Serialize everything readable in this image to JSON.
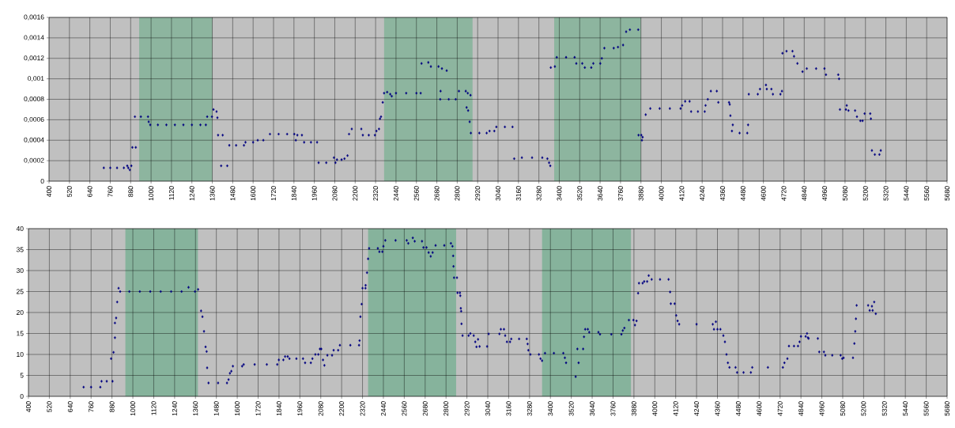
{
  "chart_data": [
    {
      "type": "scatter",
      "color": "#000080",
      "marker": "diamond",
      "grid": true,
      "xlim": [
        400,
        5680
      ],
      "xticks": [
        400,
        520,
        640,
        760,
        880,
        1000,
        1120,
        1240,
        1360,
        1480,
        1600,
        1720,
        1840,
        1960,
        2080,
        2200,
        2320,
        2440,
        2560,
        2680,
        2800,
        2920,
        3040,
        3160,
        3280,
        3400,
        3520,
        3640,
        3760,
        3880,
        4000,
        4120,
        4240,
        4360,
        4480,
        4600,
        4720,
        4840,
        4960,
        5080,
        5200,
        5320,
        5440,
        5560,
        5680
      ],
      "ylim": [
        0,
        0.0016
      ],
      "yticks": [
        0,
        {
          "value": 0.0002,
          "label": "0,0002"
        },
        {
          "value": 0.0004,
          "label": "0,0004"
        },
        {
          "value": 0.0006,
          "label": "0,0006"
        },
        {
          "value": 0.0008,
          "label": "0,0008"
        },
        {
          "value": 0.001,
          "label": "0,001"
        },
        {
          "value": 0.0012,
          "label": "0,0012"
        },
        {
          "value": 0.0014,
          "label": "0,0014"
        },
        {
          "value": 0.0016,
          "label": "0,0016"
        }
      ],
      "bands": [
        {
          "axis": "x",
          "from": 930,
          "to": 1360,
          "color": "#8db59f"
        },
        {
          "axis": "x",
          "from": 2370,
          "to": 2890,
          "color": "#8db59f"
        },
        {
          "axis": "x",
          "from": 3370,
          "to": 3880,
          "color": "#8db59f"
        }
      ],
      "x": [
        722,
        760,
        800,
        840,
        866,
        860,
        875,
        884,
        890,
        910,
        905,
        940,
        982,
        986,
        995,
        1040,
        1090,
        1140,
        1190,
        1240,
        1290,
        1322,
        1330,
        1358,
        1367,
        1385,
        1390,
        1394,
        1421,
        1412,
        1448,
        1460,
        1500,
        1546,
        1555,
        1600,
        1627,
        1660,
        1699,
        1750,
        1800,
        1842,
        1851,
        1860,
        1887,
        1900,
        1940,
        1976,
        1985,
        2030,
        2084,
        2075,
        2093,
        2120,
        2137,
        2155,
        2164,
        2180,
        2236,
        2245,
        2280,
        2316,
        2325,
        2340,
        2346,
        2352,
        2362,
        2370,
        2388,
        2406,
        2415,
        2440,
        2500,
        2560,
        2585,
        2590,
        2630,
        2645,
        2690,
        2710,
        2738,
        2702,
        2700,
        2750,
        2791,
        2810,
        2850,
        2862,
        2878,
        2855,
        2864,
        2873,
        2880,
        2930,
        2973,
        2990,
        3018,
        3030,
        3080,
        3125,
        3135,
        3180,
        3240,
        3300,
        3330,
        3340,
        3347,
        3350,
        3374,
        3385,
        3440,
        3490,
        3500,
        3535,
        3550,
        3588,
        3600,
        3641,
        3650,
        3665,
        3720,
        3745,
        3775,
        3793,
        3815,
        3864,
        3866,
        3882,
        3886,
        3890,
        3908,
        3935,
        3990,
        4050,
        4113,
        4122,
        4140,
        4166,
        4175,
        4215,
        4255,
        4260,
        4273,
        4291,
        4326,
        4335,
        4398,
        4402,
        4406,
        4415,
        4420,
        4460,
        4505,
        4510,
        4514,
        4567,
        4580,
        4620,
        4647,
        4615,
        4656,
        4700,
        4709,
        4712,
        4736,
        4771,
        4780,
        4800,
        4830,
        4855,
        4910,
        4959,
        4968,
        5040,
        5045,
        5050,
        5085,
        5090,
        5100,
        5139,
        5150,
        5170,
        5183,
        5195,
        5228,
        5232,
        5238,
        5255,
        5282,
        5290
      ],
      "values": [
        0.00013,
        0.00013,
        0.00013,
        0.00013,
        0.00013,
        0.00015,
        0.00011,
        0.00015,
        0.00033,
        0.00033,
        0.00063,
        0.00063,
        0.00063,
        0.00058,
        0.00055,
        0.00055,
        0.00055,
        0.00055,
        0.00055,
        0.00055,
        0.00055,
        0.00055,
        0.00063,
        0.00063,
        0.0007,
        0.00068,
        0.00062,
        0.00045,
        0.00045,
        0.00015,
        0.00015,
        0.00035,
        0.00035,
        0.00035,
        0.00038,
        0.00038,
        0.0004,
        0.0004,
        0.00046,
        0.00046,
        0.00046,
        0.00046,
        0.0004,
        0.00045,
        0.00045,
        0.00038,
        0.00038,
        0.00038,
        0.00018,
        0.00018,
        0.00018,
        0.00023,
        0.00021,
        0.00021,
        0.00022,
        0.00025,
        0.00046,
        0.00051,
        0.00051,
        0.00045,
        0.00045,
        0.00045,
        0.00049,
        0.00051,
        0.00061,
        0.00063,
        0.00077,
        0.00086,
        0.00087,
        0.00085,
        0.00083,
        0.00086,
        0.00086,
        0.00086,
        0.00086,
        0.00115,
        0.00116,
        0.00112,
        0.00112,
        0.0011,
        0.00108,
        0.00088,
        0.0008,
        0.0008,
        0.0008,
        0.00088,
        0.00088,
        0.00086,
        0.00084,
        0.00072,
        0.00069,
        0.00058,
        0.00047,
        0.00047,
        0.00047,
        0.00049,
        0.00049,
        0.00053,
        0.00053,
        0.00053,
        0.00022,
        0.00023,
        0.00023,
        0.00023,
        0.00022,
        0.00018,
        0.00015,
        0.00111,
        0.00112,
        0.00121,
        0.00121,
        0.00121,
        0.00115,
        0.00115,
        0.00111,
        0.00111,
        0.00115,
        0.00115,
        0.0012,
        0.0013,
        0.0013,
        0.00131,
        0.00133,
        0.00146,
        0.00148,
        0.00148,
        0.00045,
        0.00045,
        0.0004,
        0.00043,
        0.00065,
        0.00071,
        0.00071,
        0.00071,
        0.00071,
        0.00074,
        0.00078,
        0.00078,
        0.00068,
        0.00068,
        0.00068,
        0.00074,
        0.0008,
        0.00088,
        0.00088,
        0.00077,
        0.00077,
        0.00075,
        0.00064,
        0.00049,
        0.00055,
        0.00047,
        0.00047,
        0.00055,
        0.00085,
        0.00085,
        0.0009,
        0.0009,
        0.0009,
        0.00094,
        0.00085,
        0.00085,
        0.00088,
        0.00125,
        0.00127,
        0.00127,
        0.00122,
        0.00115,
        0.00107,
        0.0011,
        0.0011,
        0.0011,
        0.00104,
        0.00104,
        0.001,
        0.0007,
        0.0007,
        0.00074,
        0.00069,
        0.00069,
        0.00063,
        0.00059,
        0.00059,
        0.00066,
        0.00066,
        0.00061,
        0.0003,
        0.00026,
        0.00026,
        0.0003
      ]
    },
    {
      "type": "scatter",
      "color": "#000080",
      "marker": "diamond",
      "grid": true,
      "xlim": [
        400,
        5680
      ],
      "xticks": [
        400,
        520,
        640,
        760,
        880,
        1000,
        1120,
        1240,
        1360,
        1480,
        1600,
        1720,
        1840,
        1960,
        2080,
        2200,
        2320,
        2440,
        2560,
        2680,
        2800,
        2920,
        3040,
        3160,
        3280,
        3400,
        3520,
        3640,
        3760,
        3880,
        4000,
        4120,
        4240,
        4360,
        4480,
        4600,
        4720,
        4840,
        4960,
        5080,
        5200,
        5320,
        5440,
        5560,
        5680
      ],
      "ylim": [
        0,
        40
      ],
      "yticks": [
        0,
        5,
        10,
        15,
        20,
        25,
        30,
        35,
        40
      ],
      "bands": [
        {
          "axis": "x",
          "from": 957,
          "to": 1374,
          "color": "#86b39c"
        },
        {
          "axis": "x",
          "from": 2352,
          "to": 2858,
          "color": "#86b39c"
        },
        {
          "axis": "x",
          "from": 3352,
          "to": 3863,
          "color": "#86b39c"
        }
      ],
      "x": [
        717,
        760,
        813,
        820,
        850,
        883,
        875,
        889,
        897,
        897,
        904,
        910,
        918,
        927,
        980,
        1040,
        1100,
        1160,
        1220,
        1280,
        1320,
        1357,
        1375,
        1392,
        1400,
        1409,
        1418,
        1424,
        1427,
        1435,
        1490,
        1541,
        1550,
        1558,
        1566,
        1575,
        1628,
        1637,
        1700,
        1770,
        1830,
        1839,
        1865,
        1875,
        1890,
        1900,
        1940,
        1978,
        1990,
        2023,
        2032,
        2049,
        2066,
        2075,
        2083,
        2093,
        2101,
        2118,
        2145,
        2154,
        2180,
        2190,
        2250,
        2300,
        2303,
        2308,
        2315,
        2320,
        2337,
        2338,
        2346,
        2352,
        2358,
        2408,
        2417,
        2434,
        2440,
        2451,
        2510,
        2574,
        2583,
        2609,
        2620,
        2662,
        2670,
        2688,
        2700,
        2723,
        2712,
        2740,
        2790,
        2828,
        2837,
        2841,
        2843,
        2846,
        2863,
        2866,
        2880,
        2882,
        2885,
        2887,
        2889,
        2895,
        2930,
        2959,
        2940,
        2968,
        2975,
        2984,
        2993,
        3036,
        3045,
        3107,
        3115,
        3133,
        3140,
        3150,
        3168,
        3175,
        3220,
        3264,
        3269,
        3273,
        3285,
        3334,
        3343,
        3352,
        3369,
        3420,
        3474,
        3483,
        3490,
        3562,
        3545,
        3555,
        3588,
        3593,
        3600,
        3615,
        3623,
        3676,
        3685,
        3750,
        3808,
        3816,
        3825,
        3851,
        3877,
        3886,
        3895,
        3904,
        3909,
        3930,
        3939,
        3956,
        3965,
        3982,
        4030,
        4079,
        4088,
        4092,
        4114,
        4123,
        4131,
        4140,
        4240,
        4333,
        4340,
        4351,
        4360,
        4377,
        4394,
        4403,
        4412,
        4420,
        4429,
        4464,
        4473,
        4510,
        4552,
        4560,
        4650,
        4736,
        4745,
        4762,
        4771,
        4800,
        4823,
        4832,
        4840,
        4867,
        4875,
        4880,
        4884,
        4937,
        4945,
        4972,
        4980,
        5020,
        5068,
        5077,
        5085,
        5139,
        5147,
        5152,
        5156,
        5160,
        5226,
        5235,
        5252,
        5248,
        5261,
        5270
      ],
      "values": [
        2.2,
        2.2,
        2.2,
        3.6,
        3.6,
        3.6,
        9,
        10.5,
        14,
        17.5,
        18.7,
        22.5,
        25.8,
        25,
        25,
        25,
        25,
        25,
        25,
        25,
        26,
        25,
        25.5,
        20.4,
        19,
        15.5,
        11.8,
        10.7,
        6.8,
        3.2,
        3.2,
        3.2,
        4,
        5.5,
        6,
        7.2,
        7.2,
        7.6,
        7.6,
        7.6,
        7.6,
        8.7,
        8.7,
        9.5,
        9.5,
        9,
        9,
        9,
        8,
        8,
        9,
        10,
        10,
        11.3,
        11.3,
        8.7,
        7.4,
        9.8,
        9.8,
        11,
        11,
        12.2,
        12.2,
        12.2,
        13.3,
        19,
        22,
        25.8,
        25.8,
        26.5,
        29.5,
        32.8,
        35.3,
        35.3,
        34.5,
        34.5,
        35.8,
        37.2,
        37.2,
        37.2,
        36.5,
        37.8,
        37,
        37,
        35.5,
        35.5,
        34.3,
        34.3,
        33.4,
        36,
        36,
        36.5,
        35.8,
        33.5,
        31,
        28.3,
        28.3,
        24.7,
        24.7,
        24,
        21,
        20.3,
        17.3,
        14.5,
        14.5,
        14.5,
        15,
        13,
        11.8,
        13.6,
        11.9,
        11.9,
        14.9,
        14.9,
        16,
        16,
        14.5,
        13,
        13,
        13.7,
        13.7,
        13.7,
        12.5,
        11,
        10,
        10,
        9,
        8.5,
        10.3,
        10.3,
        10.3,
        9.2,
        8,
        8,
        4.7,
        11.3,
        11.3,
        14.2,
        16,
        16,
        15.3,
        15.3,
        14.8,
        14.8,
        14.8,
        15.7,
        16.3,
        18.2,
        18.2,
        17,
        18,
        24.6,
        27,
        27,
        27.4,
        27.4,
        28.8,
        27.9,
        27.9,
        27.9,
        24.9,
        22.1,
        22.1,
        19.3,
        18,
        17.2,
        17.2,
        17.2,
        16,
        17.8,
        16,
        16,
        14.5,
        13,
        10,
        8,
        6.9,
        6.9,
        5.7,
        5.7,
        5.7,
        6.9,
        6.9,
        6.9,
        8,
        9,
        12,
        12,
        12,
        13,
        14.3,
        14.3,
        15,
        14,
        13.8,
        13.8,
        10.6,
        10.6,
        9.8,
        9.8,
        9.8,
        9,
        9.2,
        9.2,
        12.6,
        15.5,
        18.5,
        21.7,
        21.7,
        20.5,
        20.5,
        21.5,
        22.5,
        19.7
      ]
    }
  ]
}
